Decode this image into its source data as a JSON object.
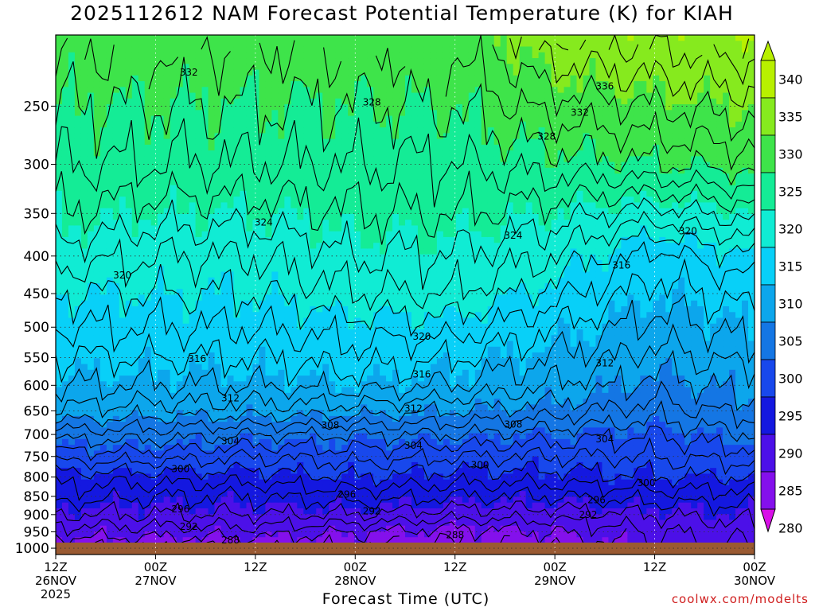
{
  "title": "2025112612 NAM Forecast Potential Temperature (K) for KIAH",
  "credit": "coolwx.com/modelts",
  "chart_data": {
    "type": "heatmap",
    "title": "2025112612 NAM Forecast Potential Temperature (K) for KIAH",
    "xlabel": "Forecast Time (UTC)",
    "ylabel": "",
    "x_ticks": [
      {
        "hours": 0,
        "lines": [
          "12Z",
          "26NOV",
          "2025"
        ]
      },
      {
        "hours": 12,
        "lines": [
          "00Z",
          "27NOV"
        ]
      },
      {
        "hours": 24,
        "lines": [
          "12Z"
        ]
      },
      {
        "hours": 36,
        "lines": [
          "00Z",
          "28NOV"
        ]
      },
      {
        "hours": 48,
        "lines": [
          "12Z"
        ]
      },
      {
        "hours": 60,
        "lines": [
          "00Z",
          "29NOV"
        ]
      },
      {
        "hours": 72,
        "lines": [
          "12Z"
        ]
      },
      {
        "hours": 84,
        "lines": [
          "00Z",
          "30NOV"
        ]
      }
    ],
    "xlim_hours": [
      0,
      84
    ],
    "y_ticks": [
      250,
      300,
      350,
      400,
      450,
      500,
      550,
      600,
      650,
      700,
      750,
      800,
      850,
      900,
      950,
      1000
    ],
    "ylim": [
      200,
      1020
    ],
    "y_scale": "log-pressure",
    "grid": true,
    "colorbar": {
      "ticks": [
        340,
        335,
        330,
        325,
        320,
        315,
        310,
        305,
        300,
        295,
        290,
        285,
        280
      ],
      "colors": [
        "#b8f000",
        "#86ea1e",
        "#3ee44a",
        "#14ec96",
        "#10ecd4",
        "#08d0f8",
        "#0ca6ec",
        "#1476e4",
        "#1848ec",
        "#1418e0",
        "#4c10e8",
        "#8410ec",
        "#d810e8"
      ]
    },
    "theta_levels_columns": [
      {
        "hours": 0,
        "t250": 330,
        "t300": 328,
        "t350": 326,
        "t400": 323,
        "t450": 320,
        "t500": 318,
        "t550": 316,
        "t600": 314,
        "t650": 312,
        "t700": 307,
        "t750": 303,
        "t800": 299,
        "t850": 297,
        "t900": 294,
        "t950": 291,
        "t1000": 288
      },
      {
        "hours": 12,
        "t250": 330,
        "t300": 328,
        "t350": 325,
        "t400": 322,
        "t450": 320,
        "t500": 318,
        "t550": 316,
        "t600": 314,
        "t650": 311,
        "t700": 307,
        "t750": 303,
        "t800": 299,
        "t850": 296,
        "t900": 294,
        "t950": 291,
        "t1000": 288
      },
      {
        "hours": 24,
        "t250": 330,
        "t300": 328,
        "t350": 325,
        "t400": 322,
        "t450": 320,
        "t500": 318,
        "t550": 316,
        "t600": 314,
        "t650": 311,
        "t700": 306,
        "t750": 302,
        "t800": 299,
        "t850": 296,
        "t900": 294,
        "t950": 291,
        "t1000": 288
      },
      {
        "hours": 36,
        "t250": 330,
        "t300": 328,
        "t350": 326,
        "t400": 324,
        "t450": 322,
        "t500": 319,
        "t550": 317,
        "t600": 315,
        "t650": 311,
        "t700": 306,
        "t750": 303,
        "t800": 300,
        "t850": 297,
        "t900": 294,
        "t950": 290,
        "t1000": 288
      },
      {
        "hours": 48,
        "t250": 330,
        "t300": 328,
        "t350": 326,
        "t400": 324,
        "t450": 322,
        "t500": 319,
        "t550": 316,
        "t600": 314,
        "t650": 310,
        "t700": 306,
        "t750": 302,
        "t800": 299,
        "t850": 296,
        "t900": 293,
        "t950": 289,
        "t1000": 288
      },
      {
        "hours": 60,
        "t250": 333,
        "t300": 329,
        "t350": 325,
        "t400": 322,
        "t450": 319,
        "t500": 316,
        "t550": 314,
        "t600": 312,
        "t650": 309,
        "t700": 305,
        "t750": 302,
        "t800": 299,
        "t850": 296,
        "t900": 293,
        "t950": 290,
        "t1000": 288
      },
      {
        "hours": 72,
        "t250": 334,
        "t300": 330,
        "t350": 323,
        "t400": 317,
        "t450": 315,
        "t500": 313,
        "t550": 311,
        "t600": 309,
        "t650": 307,
        "t700": 304,
        "t750": 302,
        "t800": 300,
        "t850": 297,
        "t900": 294,
        "t950": 292,
        "t1000": 291
      },
      {
        "hours": 84,
        "t250": 335,
        "t300": 331,
        "t350": 325,
        "t400": 320,
        "t450": 317,
        "t500": 315,
        "t550": 313,
        "t600": 311,
        "t650": 309,
        "t700": 306,
        "t750": 303,
        "t800": 300,
        "t850": 297,
        "t900": 295,
        "t950": 293,
        "t1000": 292
      }
    ],
    "contour_labels": [
      {
        "text": "332",
        "hours": 16,
        "p": 225
      },
      {
        "text": "328",
        "hours": 38,
        "p": 247
      },
      {
        "text": "336",
        "hours": 66,
        "p": 235
      },
      {
        "text": "332",
        "hours": 63,
        "p": 255
      },
      {
        "text": "328",
        "hours": 59,
        "p": 275
      },
      {
        "text": "324",
        "hours": 25,
        "p": 360
      },
      {
        "text": "324",
        "hours": 55,
        "p": 375
      },
      {
        "text": "320",
        "hours": 76,
        "p": 370
      },
      {
        "text": "320",
        "hours": 8,
        "p": 425
      },
      {
        "text": "316",
        "hours": 68,
        "p": 412
      },
      {
        "text": "320",
        "hours": 44,
        "p": 515
      },
      {
        "text": "316",
        "hours": 17,
        "p": 552
      },
      {
        "text": "316",
        "hours": 44,
        "p": 580
      },
      {
        "text": "312",
        "hours": 66,
        "p": 560
      },
      {
        "text": "312",
        "hours": 21,
        "p": 625
      },
      {
        "text": "312",
        "hours": 43,
        "p": 645
      },
      {
        "text": "308",
        "hours": 33,
        "p": 680
      },
      {
        "text": "308",
        "hours": 55,
        "p": 678
      },
      {
        "text": "304",
        "hours": 21,
        "p": 715
      },
      {
        "text": "304",
        "hours": 43,
        "p": 725
      },
      {
        "text": "304",
        "hours": 66,
        "p": 710
      },
      {
        "text": "300",
        "hours": 15,
        "p": 780
      },
      {
        "text": "300",
        "hours": 51,
        "p": 770
      },
      {
        "text": "300",
        "hours": 71,
        "p": 815
      },
      {
        "text": "296",
        "hours": 35,
        "p": 845
      },
      {
        "text": "296",
        "hours": 65,
        "p": 860
      },
      {
        "text": "296",
        "hours": 15,
        "p": 885
      },
      {
        "text": "292",
        "hours": 38,
        "p": 890
      },
      {
        "text": "292",
        "hours": 64,
        "p": 900
      },
      {
        "text": "292",
        "hours": 16,
        "p": 935
      },
      {
        "text": "288",
        "hours": 21,
        "p": 975
      },
      {
        "text": "288",
        "hours": 48,
        "p": 960
      }
    ]
  }
}
